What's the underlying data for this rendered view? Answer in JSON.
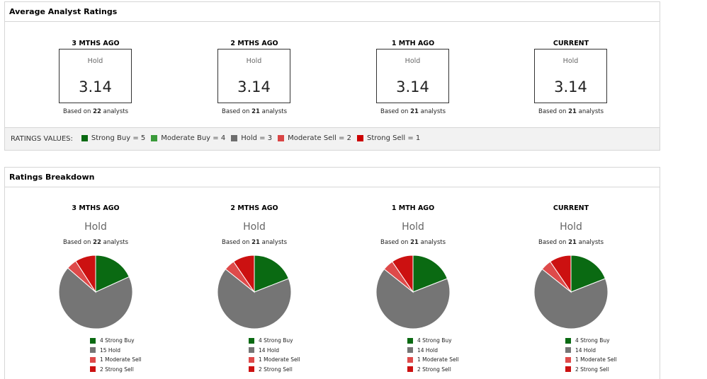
{
  "average_panel": {
    "title": "Average Analyst Ratings",
    "columns": [
      {
        "header": "3 MTHS AGO",
        "consensus": "Hold",
        "score": "3.14",
        "based_prefix": "Based on",
        "analysts": "22",
        "based_suffix": "analysts"
      },
      {
        "header": "2 MTHS AGO",
        "consensus": "Hold",
        "score": "3.14",
        "based_prefix": "Based on",
        "analysts": "21",
        "based_suffix": "analysts"
      },
      {
        "header": "1 MTH AGO",
        "consensus": "Hold",
        "score": "3.14",
        "based_prefix": "Based on",
        "analysts": "21",
        "based_suffix": "analysts"
      },
      {
        "header": "CURRENT",
        "consensus": "Hold",
        "score": "3.14",
        "based_prefix": "Based on",
        "analysts": "21",
        "based_suffix": "analysts"
      }
    ],
    "ratings_values": {
      "label": "RATINGS VALUES:",
      "items": [
        {
          "text": "Strong Buy = 5",
          "color": "#0a6a12"
        },
        {
          "text": "Moderate Buy = 4",
          "color": "#3a9a3a"
        },
        {
          "text": "Hold = 3",
          "color": "#6e6e6e"
        },
        {
          "text": "Moderate Sell = 2",
          "color": "#d94545"
        },
        {
          "text": "Strong Sell = 1",
          "color": "#cc0000"
        }
      ]
    }
  },
  "breakdown_panel": {
    "title": "Ratings Breakdown",
    "colors": {
      "strong_buy": "#0a6a12",
      "hold": "#757575",
      "moderate_sell": "#de4a4a",
      "strong_sell": "#cc1111"
    },
    "columns": [
      {
        "header": "3 MTHS AGO",
        "consensus": "Hold",
        "based_prefix": "Based on",
        "analysts": "22",
        "based_suffix": "analysts",
        "slices": [
          {
            "key": "strong_buy",
            "count": 4,
            "label": "4 Strong Buy"
          },
          {
            "key": "hold",
            "count": 15,
            "label": "15 Hold"
          },
          {
            "key": "moderate_sell",
            "count": 1,
            "label": "1 Moderate Sell"
          },
          {
            "key": "strong_sell",
            "count": 2,
            "label": "2 Strong Sell"
          }
        ]
      },
      {
        "header": "2 MTHS AGO",
        "consensus": "Hold",
        "based_prefix": "Based on",
        "analysts": "21",
        "based_suffix": "analysts",
        "slices": [
          {
            "key": "strong_buy",
            "count": 4,
            "label": "4 Strong Buy"
          },
          {
            "key": "hold",
            "count": 14,
            "label": "14 Hold"
          },
          {
            "key": "moderate_sell",
            "count": 1,
            "label": "1 Moderate Sell"
          },
          {
            "key": "strong_sell",
            "count": 2,
            "label": "2 Strong Sell"
          }
        ]
      },
      {
        "header": "1 MTH AGO",
        "consensus": "Hold",
        "based_prefix": "Based on",
        "analysts": "21",
        "based_suffix": "analysts",
        "slices": [
          {
            "key": "strong_buy",
            "count": 4,
            "label": "4 Strong Buy"
          },
          {
            "key": "hold",
            "count": 14,
            "label": "14 Hold"
          },
          {
            "key": "moderate_sell",
            "count": 1,
            "label": "1 Moderate Sell"
          },
          {
            "key": "strong_sell",
            "count": 2,
            "label": "2 Strong Sell"
          }
        ]
      },
      {
        "header": "CURRENT",
        "consensus": "Hold",
        "based_prefix": "Based on",
        "analysts": "21",
        "based_suffix": "analysts",
        "slices": [
          {
            "key": "strong_buy",
            "count": 4,
            "label": "4 Strong Buy"
          },
          {
            "key": "hold",
            "count": 14,
            "label": "14 Hold"
          },
          {
            "key": "moderate_sell",
            "count": 1,
            "label": "1 Moderate Sell"
          },
          {
            "key": "strong_sell",
            "count": 2,
            "label": "2 Strong Sell"
          }
        ]
      }
    ]
  },
  "chart_data": [
    {
      "type": "pie",
      "title": "3 MTHS AGO",
      "categories": [
        "Strong Buy",
        "Hold",
        "Moderate Sell",
        "Strong Sell"
      ],
      "values": [
        4,
        15,
        1,
        2
      ]
    },
    {
      "type": "pie",
      "title": "2 MTHS AGO",
      "categories": [
        "Strong Buy",
        "Hold",
        "Moderate Sell",
        "Strong Sell"
      ],
      "values": [
        4,
        14,
        1,
        2
      ]
    },
    {
      "type": "pie",
      "title": "1 MTH AGO",
      "categories": [
        "Strong Buy",
        "Hold",
        "Moderate Sell",
        "Strong Sell"
      ],
      "values": [
        4,
        14,
        1,
        2
      ]
    },
    {
      "type": "pie",
      "title": "CURRENT",
      "categories": [
        "Strong Buy",
        "Hold",
        "Moderate Sell",
        "Strong Sell"
      ],
      "values": [
        4,
        14,
        1,
        2
      ]
    }
  ]
}
